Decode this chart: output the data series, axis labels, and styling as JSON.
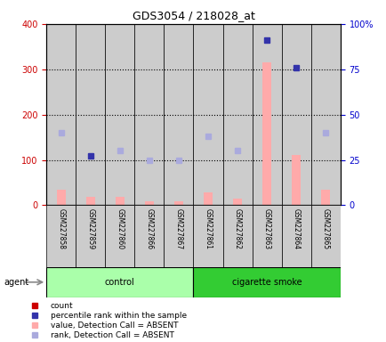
{
  "title": "GDS3054 / 218028_at",
  "samples": [
    "GSM227858",
    "GSM227859",
    "GSM227860",
    "GSM227866",
    "GSM227867",
    "GSM227861",
    "GSM227862",
    "GSM227863",
    "GSM227864",
    "GSM227865"
  ],
  "groups": [
    "control",
    "control",
    "control",
    "control",
    "control",
    "cigarette smoke",
    "cigarette smoke",
    "cigarette smoke",
    "cigarette smoke",
    "cigarette smoke"
  ],
  "count_values": [
    35,
    18,
    18,
    8,
    8,
    28,
    15,
    315,
    110,
    35
  ],
  "rank_values": [
    40,
    27,
    30,
    25,
    25,
    38,
    30,
    91,
    76,
    40
  ],
  "count_absent": [
    true,
    true,
    true,
    true,
    true,
    true,
    true,
    true,
    true,
    true
  ],
  "rank_absent": [
    true,
    false,
    true,
    true,
    true,
    true,
    true,
    false,
    false,
    true
  ],
  "left_ylim": [
    0,
    400
  ],
  "right_ylim": [
    0,
    100
  ],
  "left_yticks": [
    0,
    100,
    200,
    300,
    400
  ],
  "right_yticks": [
    0,
    25,
    50,
    75,
    100
  ],
  "right_yticklabels": [
    "0",
    "25",
    "50",
    "75",
    "100%"
  ],
  "left_color": "#cc0000",
  "right_color": "#0000cc",
  "count_bar_color": "#ffaaaa",
  "rank_dot_absent_color": "#aaaadd",
  "rank_dot_present_color": "#3333aa",
  "count_dot_color": "#cc0000",
  "bar_bg_color": "#cccccc",
  "control_bg_light": "#aaffaa",
  "control_bg_dark": "#33cc33",
  "smoke_bg_light": "#aaffaa",
  "smoke_bg_dark": "#33cc33",
  "legend_count_color": "#cc0000",
  "legend_rank_color": "#3333aa",
  "legend_count_absent_color": "#ffaaaa",
  "legend_rank_absent_color": "#aaaadd",
  "agent_label": "agent",
  "control_label": "control",
  "smoke_label": "cigarette smoke"
}
